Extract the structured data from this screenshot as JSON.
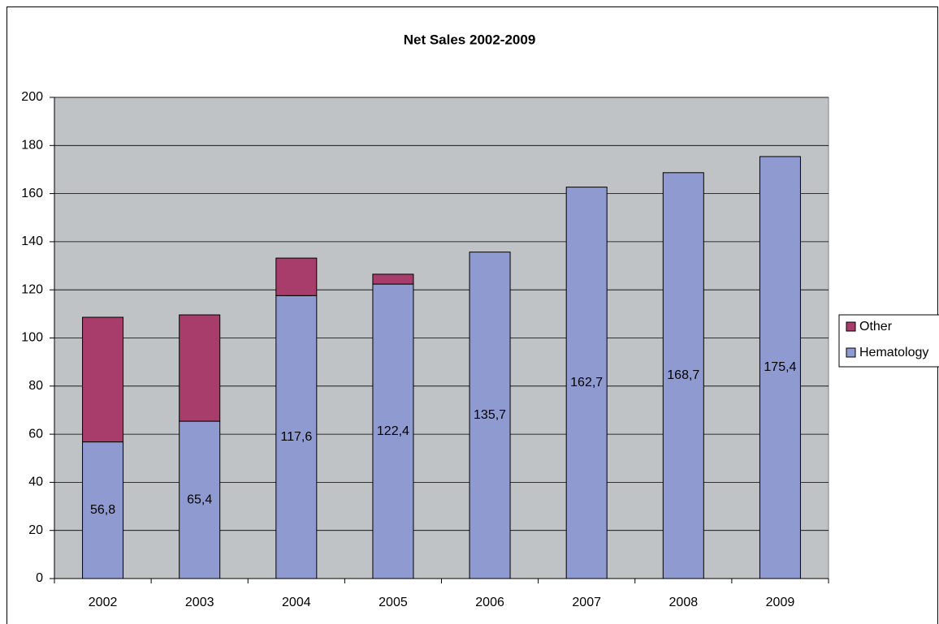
{
  "chart_data": {
    "type": "stacked_bar",
    "title": "Net Sales 2002-2009",
    "categories": [
      "2002",
      "2003",
      "2004",
      "2005",
      "2006",
      "2007",
      "2008",
      "2009"
    ],
    "series": [
      {
        "name": "Hematology",
        "color": "#8e9ad0",
        "values": [
          56.8,
          65.4,
          117.6,
          122.4,
          135.7,
          162.7,
          168.7,
          175.4
        ],
        "value_labels": [
          "56,8",
          "65,4",
          "117,6",
          "122,4",
          "135,7",
          "162,7",
          "168,7",
          "175,4"
        ]
      },
      {
        "name": "Other",
        "color": "#a83d6c",
        "values": [
          51.8,
          44.2,
          15.6,
          4.1,
          0,
          0,
          0,
          0
        ]
      }
    ],
    "ylim": [
      0,
      200
    ],
    "yticks": [
      0,
      20,
      40,
      60,
      80,
      100,
      120,
      140,
      160,
      180,
      200
    ],
    "grid": true,
    "legend": "right"
  }
}
